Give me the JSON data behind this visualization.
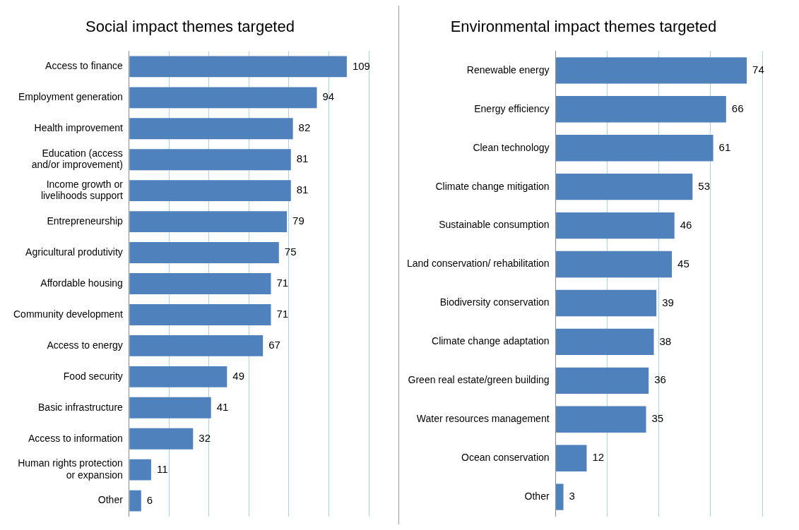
{
  "chart_data": [
    {
      "type": "bar",
      "orientation": "horizontal",
      "title": "Social impact themes targeted",
      "categories": [
        "Access to finance",
        "Employment generation",
        "Health improvement",
        "Education (access\nand/or improvement)",
        "Income growth or\nlivelihoods support",
        "Entrepreneurship",
        "Agricultural produtivity",
        "Affordable housing",
        "Community development",
        "Access to energy",
        "Food security",
        "Basic infrastructure",
        "Access to information",
        "Human rights protection\nor expansion",
        "Other"
      ],
      "values": [
        109,
        94,
        82,
        81,
        81,
        79,
        75,
        71,
        71,
        67,
        49,
        41,
        32,
        11,
        6
      ],
      "color": "#4f81bd",
      "data_labels": true,
      "grid": "x",
      "tick_labels": "y",
      "legend": false,
      "xlim": [
        0,
        120
      ],
      "xticks": [
        {
          "value": 0,
          "label": null
        },
        {
          "value": 20,
          "label": null
        },
        {
          "value": 40,
          "label": null
        },
        {
          "value": 60,
          "label": null
        },
        {
          "value": 80,
          "label": null
        },
        {
          "value": 100,
          "label": null
        },
        {
          "value": 120,
          "label": null
        }
      ]
    },
    {
      "type": "bar",
      "orientation": "horizontal",
      "title": "Environmental impact themes targeted",
      "categories": [
        "Renewable energy",
        "Energy efficiency",
        "Clean technology",
        "Climate change mitigation",
        "Sustainable consumption",
        "Land conservation/ rehabilitation",
        "Biodiversity conservation",
        "Climate change adaptation",
        "Green real estate/green building",
        "Water resources management",
        "Ocean conservation",
        "Other"
      ],
      "values": [
        74,
        66,
        61,
        53,
        46,
        45,
        39,
        38,
        36,
        35,
        12,
        3
      ],
      "color": "#4f81bd",
      "data_labels": true,
      "grid": "x",
      "tick_labels": "y",
      "legend": false,
      "xlim": [
        0,
        80
      ],
      "xticks": [
        {
          "value": 0,
          "label": null
        },
        {
          "value": 20,
          "label": null
        },
        {
          "value": 40,
          "label": null
        },
        {
          "value": 60,
          "label": null
        },
        {
          "value": 80,
          "label": null
        }
      ]
    }
  ]
}
